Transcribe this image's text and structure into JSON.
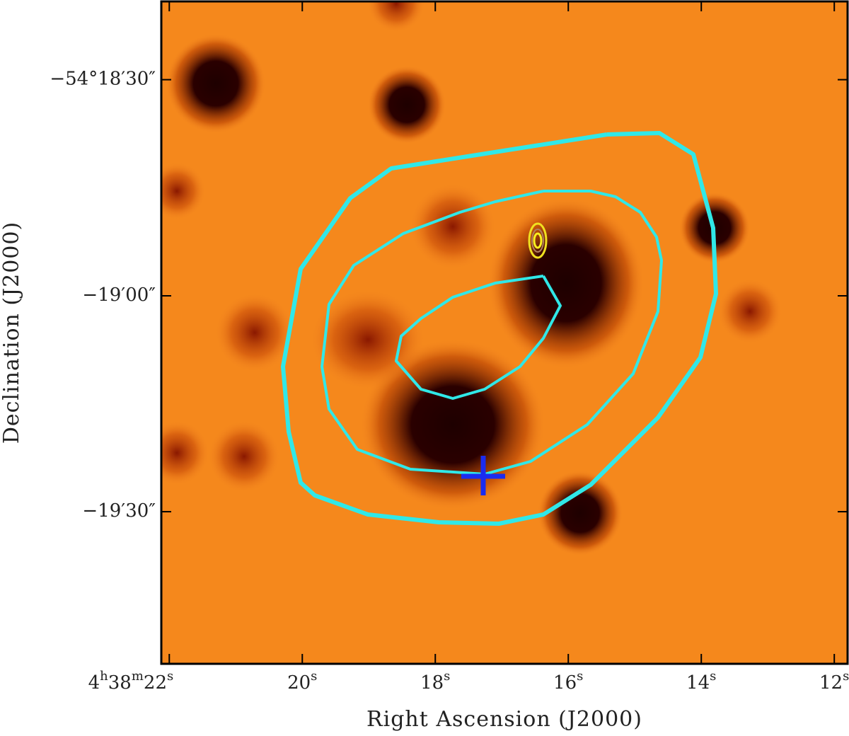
{
  "chart_data": {
    "type": "image",
    "x_label": "Right Ascension (J2000)",
    "y_label": "Declination (J2000)",
    "xlim": [
      22.12,
      11.8
    ],
    "xticks": [
      {
        "value": 22,
        "label": "4h38m22s"
      },
      {
        "value": 20,
        "label": "20s"
      },
      {
        "value": 18,
        "label": "18s"
      },
      {
        "value": 16,
        "label": "16s"
      },
      {
        "value": 14,
        "label": "14s"
      },
      {
        "value": 12,
        "label": "12s"
      }
    ],
    "ylim": [
      -54.33087,
      -54.30531
    ],
    "yticks": [
      {
        "value": -54.30833,
        "label": "−54°18′30″"
      },
      {
        "value": -54.31667,
        "label": "−19′00″"
      },
      {
        "value": -54.325,
        "label": "−19′30″"
      }
    ]
  }
}
